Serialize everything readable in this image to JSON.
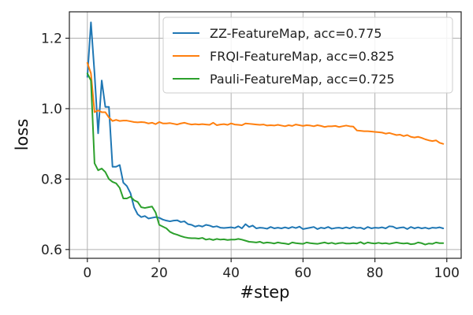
{
  "chart_data": {
    "type": "line",
    "xlabel": "#step",
    "ylabel": "loss",
    "xlim": [
      -5,
      104
    ],
    "ylim": [
      0.575,
      1.275
    ],
    "xticks": [
      0,
      20,
      40,
      60,
      80,
      100
    ],
    "yticks": [
      0.6,
      0.8,
      1.0,
      1.2
    ],
    "xtick_labels": [
      "0",
      "20",
      "40",
      "60",
      "80",
      "100"
    ],
    "ytick_labels": [
      "0.6",
      "0.8",
      "1.0",
      "1.2"
    ],
    "grid": true,
    "legend_position": "top-right",
    "series": [
      {
        "name": "ZZ-FeatureMap, acc=0.775",
        "color": "#1f77b4",
        "values": [
          1.09,
          1.245,
          1.1,
          0.93,
          1.08,
          1.005,
          1.005,
          0.835,
          0.835,
          0.84,
          0.79,
          0.78,
          0.76,
          0.72,
          0.7,
          0.692,
          0.695,
          0.688,
          0.69,
          0.692,
          0.69,
          0.685,
          0.682,
          0.68,
          0.682,
          0.683,
          0.678,
          0.68,
          0.672,
          0.67,
          0.665,
          0.668,
          0.665,
          0.67,
          0.668,
          0.664,
          0.666,
          0.662,
          0.661,
          0.662,
          0.663,
          0.661,
          0.666,
          0.66,
          0.672,
          0.664,
          0.668,
          0.66,
          0.662,
          0.661,
          0.659,
          0.664,
          0.66,
          0.662,
          0.66,
          0.663,
          0.66,
          0.664,
          0.661,
          0.665,
          0.658,
          0.66,
          0.662,
          0.664,
          0.658,
          0.662,
          0.66,
          0.664,
          0.659,
          0.661,
          0.662,
          0.66,
          0.663,
          0.66,
          0.664,
          0.661,
          0.662,
          0.658,
          0.664,
          0.66,
          0.662,
          0.661,
          0.663,
          0.66,
          0.666,
          0.665,
          0.66,
          0.662,
          0.663,
          0.658,
          0.664,
          0.66,
          0.663,
          0.66,
          0.662,
          0.659,
          0.662,
          0.661,
          0.663,
          0.66
        ]
      },
      {
        "name": "FRQI-FeatureMap, acc=0.825",
        "color": "#ff7f0e",
        "values": [
          1.13,
          1.1,
          0.99,
          0.995,
          0.99,
          0.99,
          0.975,
          0.965,
          0.968,
          0.965,
          0.966,
          0.966,
          0.964,
          0.962,
          0.961,
          0.962,
          0.961,
          0.958,
          0.96,
          0.956,
          0.962,
          0.958,
          0.958,
          0.959,
          0.957,
          0.955,
          0.958,
          0.96,
          0.957,
          0.955,
          0.956,
          0.955,
          0.956,
          0.955,
          0.954,
          0.96,
          0.953,
          0.955,
          0.956,
          0.954,
          0.958,
          0.955,
          0.954,
          0.953,
          0.958,
          0.957,
          0.956,
          0.955,
          0.954,
          0.955,
          0.952,
          0.953,
          0.952,
          0.954,
          0.952,
          0.95,
          0.953,
          0.951,
          0.955,
          0.953,
          0.951,
          0.953,
          0.952,
          0.95,
          0.953,
          0.951,
          0.948,
          0.95,
          0.95,
          0.951,
          0.948,
          0.95,
          0.952,
          0.95,
          0.949,
          0.938,
          0.937,
          0.936,
          0.936,
          0.935,
          0.934,
          0.933,
          0.932,
          0.929,
          0.931,
          0.928,
          0.925,
          0.926,
          0.922,
          0.925,
          0.92,
          0.918,
          0.92,
          0.917,
          0.913,
          0.91,
          0.908,
          0.91,
          0.903,
          0.9
        ]
      },
      {
        "name": "Pauli-FeatureMap, acc=0.725",
        "color": "#2ca02c",
        "values": [
          1.1,
          1.08,
          0.845,
          0.825,
          0.83,
          0.82,
          0.8,
          0.792,
          0.788,
          0.775,
          0.745,
          0.745,
          0.75,
          0.74,
          0.735,
          0.72,
          0.718,
          0.72,
          0.722,
          0.705,
          0.67,
          0.665,
          0.66,
          0.65,
          0.645,
          0.642,
          0.638,
          0.635,
          0.633,
          0.632,
          0.632,
          0.631,
          0.633,
          0.628,
          0.63,
          0.627,
          0.63,
          0.628,
          0.629,
          0.627,
          0.628,
          0.628,
          0.63,
          0.628,
          0.625,
          0.622,
          0.621,
          0.62,
          0.622,
          0.618,
          0.62,
          0.619,
          0.617,
          0.62,
          0.618,
          0.617,
          0.615,
          0.62,
          0.618,
          0.617,
          0.616,
          0.62,
          0.618,
          0.617,
          0.616,
          0.618,
          0.62,
          0.617,
          0.619,
          0.616,
          0.618,
          0.619,
          0.617,
          0.617,
          0.618,
          0.617,
          0.621,
          0.616,
          0.62,
          0.618,
          0.617,
          0.619,
          0.617,
          0.618,
          0.616,
          0.618,
          0.62,
          0.618,
          0.617,
          0.618,
          0.615,
          0.616,
          0.62,
          0.618,
          0.614,
          0.617,
          0.616,
          0.62,
          0.618,
          0.618
        ]
      }
    ]
  }
}
